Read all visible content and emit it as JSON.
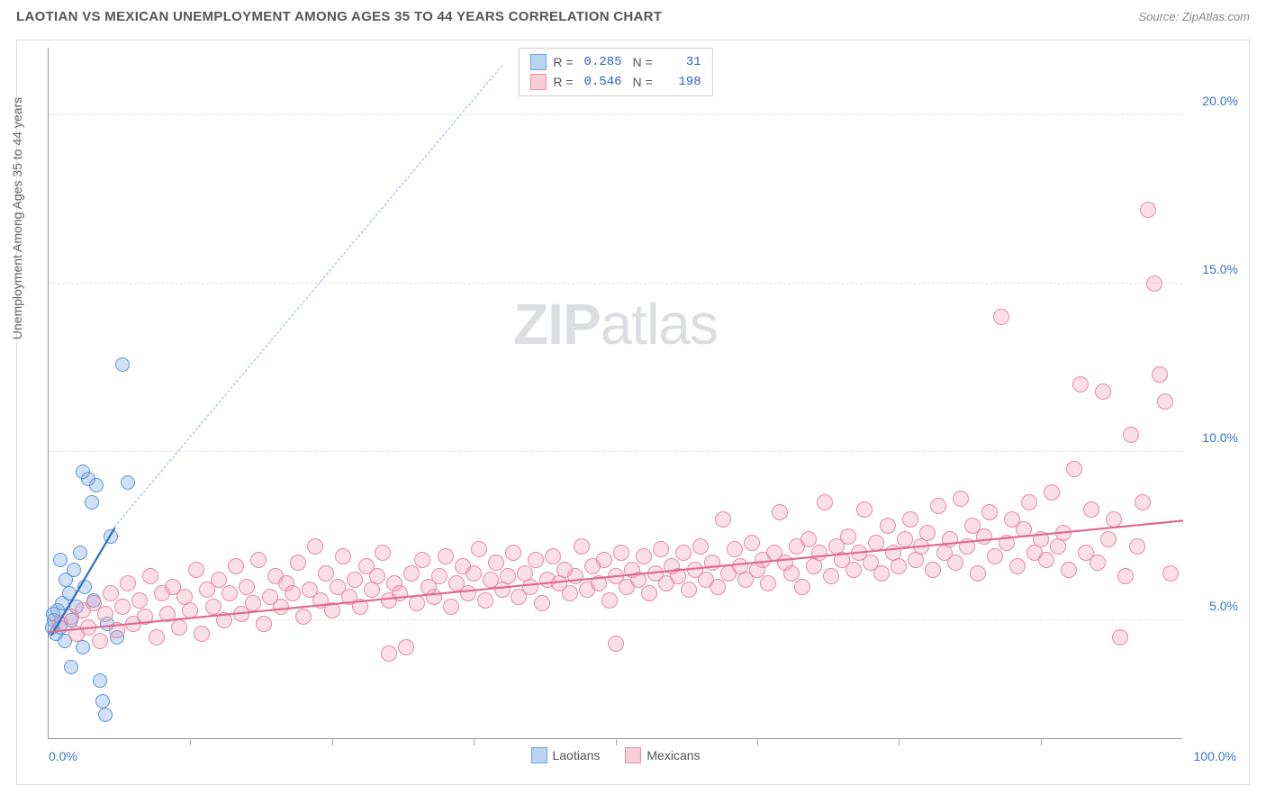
{
  "header": {
    "title": "LAOTIAN VS MEXICAN UNEMPLOYMENT AMONG AGES 35 TO 44 YEARS CORRELATION CHART",
    "source": "Source: ZipAtlas.com"
  },
  "chart": {
    "type": "scatter",
    "y_axis_label": "Unemployment Among Ages 35 to 44 years",
    "xlim": [
      0,
      100
    ],
    "ylim": [
      1.5,
      22
    ],
    "x_tick_positions": [
      12.5,
      25,
      37.5,
      50,
      62.5,
      75,
      87.5
    ],
    "x_start_label": "0.0%",
    "x_end_label": "100.0%",
    "y_ticks": [
      {
        "v": 5,
        "label": "5.0%"
      },
      {
        "v": 10,
        "label": "10.0%"
      },
      {
        "v": 15,
        "label": "15.0%"
      },
      {
        "v": 20,
        "label": "20.0%"
      }
    ],
    "grid_color": "#e2e2e2",
    "background_color": "#ffffff",
    "watermark_a": "ZIP",
    "watermark_b": "atlas",
    "series": [
      {
        "name": "Laotians",
        "swatch_fill": "#b9d4f1",
        "swatch_border": "#6aa3e0",
        "point_fill": "rgba(120,170,225,0.35)",
        "point_border": "#5a95d6",
        "point_radius": 8,
        "R": "0.285",
        "N": "31",
        "trend": {
          "x1": 0.2,
          "y1": 4.6,
          "x2": 5.8,
          "y2": 7.8,
          "color": "#2f6cc0"
        },
        "trend_extend": {
          "x1": 5.8,
          "y1": 7.8,
          "x2": 40,
          "y2": 21.5,
          "color": "#9fbde6"
        },
        "points": [
          [
            0.3,
            4.8
          ],
          [
            0.4,
            5.2
          ],
          [
            0.5,
            5.0
          ],
          [
            0.6,
            4.6
          ],
          [
            0.8,
            5.3
          ],
          [
            1.0,
            4.8
          ],
          [
            1.2,
            5.5
          ],
          [
            1.4,
            4.4
          ],
          [
            1.5,
            6.2
          ],
          [
            1.8,
            5.8
          ],
          [
            2.0,
            5.0
          ],
          [
            2.2,
            6.5
          ],
          [
            2.5,
            5.4
          ],
          [
            2.8,
            7.0
          ],
          [
            3.0,
            4.2
          ],
          [
            3.2,
            6.0
          ],
          [
            3.5,
            9.2
          ],
          [
            3.8,
            8.5
          ],
          [
            4.0,
            5.6
          ],
          [
            4.2,
            9.0
          ],
          [
            4.5,
            3.2
          ],
          [
            4.8,
            2.6
          ],
          [
            5.0,
            2.2
          ],
          [
            5.5,
            7.5
          ],
          [
            6.0,
            4.5
          ],
          [
            6.5,
            12.6
          ],
          [
            7.0,
            9.1
          ],
          [
            3.0,
            9.4
          ],
          [
            2.0,
            3.6
          ],
          [
            1.0,
            6.8
          ],
          [
            5.2,
            4.9
          ]
        ]
      },
      {
        "name": "Mexicans",
        "swatch_fill": "#f7cdd8",
        "swatch_border": "#e890ab",
        "point_fill": "rgba(240,150,175,0.30)",
        "point_border": "#e68aa5",
        "point_radius": 9,
        "R": "0.546",
        "N": "198",
        "trend": {
          "x1": 0,
          "y1": 4.7,
          "x2": 100,
          "y2": 8.0,
          "color": "#e06a8d"
        },
        "points": [
          [
            1,
            4.9
          ],
          [
            2,
            5.1
          ],
          [
            2.5,
            4.6
          ],
          [
            3,
            5.3
          ],
          [
            3.5,
            4.8
          ],
          [
            4,
            5.5
          ],
          [
            4.5,
            4.4
          ],
          [
            5,
            5.2
          ],
          [
            5.5,
            5.8
          ],
          [
            6,
            4.7
          ],
          [
            6.5,
            5.4
          ],
          [
            7,
            6.1
          ],
          [
            7.5,
            4.9
          ],
          [
            8,
            5.6
          ],
          [
            8.5,
            5.1
          ],
          [
            9,
            6.3
          ],
          [
            9.5,
            4.5
          ],
          [
            10,
            5.8
          ],
          [
            10.5,
            5.2
          ],
          [
            11,
            6.0
          ],
          [
            11.5,
            4.8
          ],
          [
            12,
            5.7
          ],
          [
            12.5,
            5.3
          ],
          [
            13,
            6.5
          ],
          [
            13.5,
            4.6
          ],
          [
            14,
            5.9
          ],
          [
            14.5,
            5.4
          ],
          [
            15,
            6.2
          ],
          [
            15.5,
            5.0
          ],
          [
            16,
            5.8
          ],
          [
            16.5,
            6.6
          ],
          [
            17,
            5.2
          ],
          [
            17.5,
            6.0
          ],
          [
            18,
            5.5
          ],
          [
            18.5,
            6.8
          ],
          [
            19,
            4.9
          ],
          [
            19.5,
            5.7
          ],
          [
            20,
            6.3
          ],
          [
            20.5,
            5.4
          ],
          [
            21,
            6.1
          ],
          [
            21.5,
            5.8
          ],
          [
            22,
            6.7
          ],
          [
            22.5,
            5.1
          ],
          [
            23,
            5.9
          ],
          [
            23.5,
            7.2
          ],
          [
            24,
            5.6
          ],
          [
            24.5,
            6.4
          ],
          [
            25,
            5.3
          ],
          [
            25.5,
            6.0
          ],
          [
            26,
            6.9
          ],
          [
            26.5,
            5.7
          ],
          [
            27,
            6.2
          ],
          [
            27.5,
            5.4
          ],
          [
            28,
            6.6
          ],
          [
            28.5,
            5.9
          ],
          [
            29,
            6.3
          ],
          [
            29.5,
            7.0
          ],
          [
            30,
            5.6
          ],
          [
            30.5,
            6.1
          ],
          [
            31,
            5.8
          ],
          [
            31.5,
            4.2
          ],
          [
            32,
            6.4
          ],
          [
            32.5,
            5.5
          ],
          [
            33,
            6.8
          ],
          [
            33.5,
            6.0
          ],
          [
            34,
            5.7
          ],
          [
            34.5,
            6.3
          ],
          [
            35,
            6.9
          ],
          [
            35.5,
            5.4
          ],
          [
            36,
            6.1
          ],
          [
            36.5,
            6.6
          ],
          [
            37,
            5.8
          ],
          [
            37.5,
            6.4
          ],
          [
            38,
            7.1
          ],
          [
            38.5,
            5.6
          ],
          [
            39,
            6.2
          ],
          [
            39.5,
            6.7
          ],
          [
            40,
            5.9
          ],
          [
            40.5,
            6.3
          ],
          [
            41,
            7.0
          ],
          [
            41.5,
            5.7
          ],
          [
            42,
            6.4
          ],
          [
            42.5,
            6.0
          ],
          [
            43,
            6.8
          ],
          [
            43.5,
            5.5
          ],
          [
            44,
            6.2
          ],
          [
            44.5,
            6.9
          ],
          [
            45,
            6.1
          ],
          [
            45.5,
            6.5
          ],
          [
            46,
            5.8
          ],
          [
            46.5,
            6.3
          ],
          [
            47,
            7.2
          ],
          [
            47.5,
            5.9
          ],
          [
            48,
            6.6
          ],
          [
            48.5,
            6.1
          ],
          [
            49,
            6.8
          ],
          [
            49.5,
            5.6
          ],
          [
            50,
            6.3
          ],
          [
            50.5,
            7.0
          ],
          [
            51,
            6.0
          ],
          [
            51.5,
            6.5
          ],
          [
            52,
            6.2
          ],
          [
            52.5,
            6.9
          ],
          [
            53,
            5.8
          ],
          [
            53.5,
            6.4
          ],
          [
            54,
            7.1
          ],
          [
            54.5,
            6.1
          ],
          [
            55,
            6.6
          ],
          [
            55.5,
            6.3
          ],
          [
            56,
            7.0
          ],
          [
            56.5,
            5.9
          ],
          [
            57,
            6.5
          ],
          [
            57.5,
            7.2
          ],
          [
            58,
            6.2
          ],
          [
            58.5,
            6.7
          ],
          [
            59,
            6.0
          ],
          [
            59.5,
            8.0
          ],
          [
            60,
            6.4
          ],
          [
            60.5,
            7.1
          ],
          [
            61,
            6.6
          ],
          [
            61.5,
            6.2
          ],
          [
            62,
            7.3
          ],
          [
            62.5,
            6.5
          ],
          [
            63,
            6.8
          ],
          [
            63.5,
            6.1
          ],
          [
            64,
            7.0
          ],
          [
            64.5,
            8.2
          ],
          [
            65,
            6.7
          ],
          [
            65.5,
            6.4
          ],
          [
            66,
            7.2
          ],
          [
            66.5,
            6.0
          ],
          [
            67,
            7.4
          ],
          [
            67.5,
            6.6
          ],
          [
            68,
            7.0
          ],
          [
            68.5,
            8.5
          ],
          [
            69,
            6.3
          ],
          [
            69.5,
            7.2
          ],
          [
            70,
            6.8
          ],
          [
            70.5,
            7.5
          ],
          [
            71,
            6.5
          ],
          [
            71.5,
            7.0
          ],
          [
            72,
            8.3
          ],
          [
            72.5,
            6.7
          ],
          [
            73,
            7.3
          ],
          [
            73.5,
            6.4
          ],
          [
            74,
            7.8
          ],
          [
            74.5,
            7.0
          ],
          [
            75,
            6.6
          ],
          [
            75.5,
            7.4
          ],
          [
            76,
            8.0
          ],
          [
            76.5,
            6.8
          ],
          [
            77,
            7.2
          ],
          [
            77.5,
            7.6
          ],
          [
            78,
            6.5
          ],
          [
            78.5,
            8.4
          ],
          [
            79,
            7.0
          ],
          [
            79.5,
            7.4
          ],
          [
            80,
            6.7
          ],
          [
            80.5,
            8.6
          ],
          [
            81,
            7.2
          ],
          [
            81.5,
            7.8
          ],
          [
            82,
            6.4
          ],
          [
            82.5,
            7.5
          ],
          [
            83,
            8.2
          ],
          [
            83.5,
            6.9
          ],
          [
            84,
            14.0
          ],
          [
            84.5,
            7.3
          ],
          [
            85,
            8.0
          ],
          [
            85.5,
            6.6
          ],
          [
            86,
            7.7
          ],
          [
            86.5,
            8.5
          ],
          [
            87,
            7.0
          ],
          [
            87.5,
            7.4
          ],
          [
            88,
            6.8
          ],
          [
            88.5,
            8.8
          ],
          [
            89,
            7.2
          ],
          [
            89.5,
            7.6
          ],
          [
            90,
            6.5
          ],
          [
            90.5,
            9.5
          ],
          [
            91,
            12.0
          ],
          [
            91.5,
            7.0
          ],
          [
            92,
            8.3
          ],
          [
            92.5,
            6.7
          ],
          [
            93,
            11.8
          ],
          [
            93.5,
            7.4
          ],
          [
            94,
            8.0
          ],
          [
            94.5,
            4.5
          ],
          [
            95,
            6.3
          ],
          [
            95.5,
            10.5
          ],
          [
            96,
            7.2
          ],
          [
            96.5,
            8.5
          ],
          [
            97,
            17.2
          ],
          [
            97.5,
            15.0
          ],
          [
            98,
            12.3
          ],
          [
            98.5,
            11.5
          ],
          [
            99,
            6.4
          ],
          [
            30,
            4.0
          ],
          [
            50,
            4.3
          ]
        ]
      }
    ]
  },
  "legend": {
    "items": [
      {
        "label": "Laotians",
        "fill": "#b9d4f1",
        "border": "#6aa3e0"
      },
      {
        "label": "Mexicans",
        "fill": "#f7cdd8",
        "border": "#e890ab"
      }
    ]
  }
}
